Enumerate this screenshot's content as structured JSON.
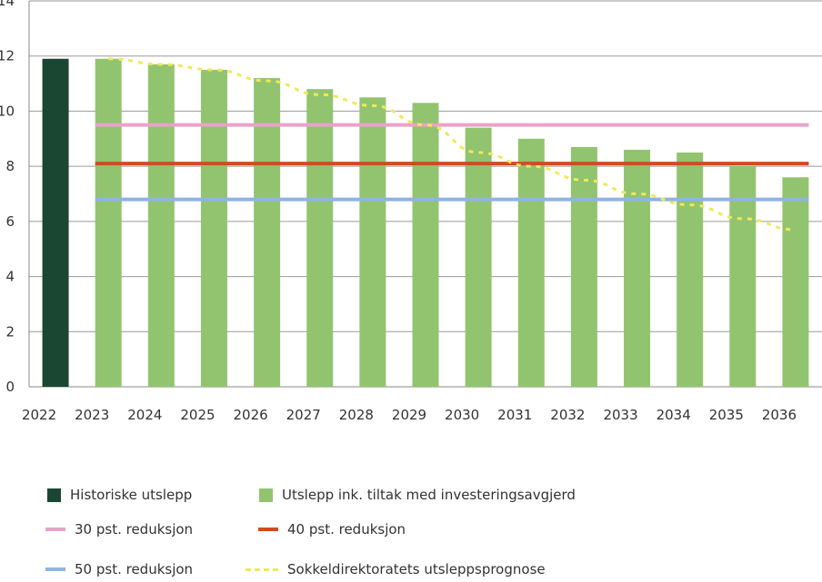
{
  "chart_data": {
    "type": "bar",
    "title": "",
    "xlabel": "",
    "ylabel": "",
    "ylim": [
      0,
      14
    ],
    "yticks": [
      0,
      2,
      4,
      6,
      8,
      10,
      12,
      14
    ],
    "grid": "horizontal",
    "legend_placement": "bottom",
    "categories": [
      "2022",
      "2023",
      "2024",
      "2025",
      "2026",
      "2027",
      "2028",
      "2029",
      "2030",
      "2031",
      "2032",
      "2033",
      "2034",
      "2035",
      "2036"
    ],
    "series": [
      {
        "name": "Historiske utslepp",
        "kind": "bar",
        "color": "#1a4731",
        "values": [
          11.9,
          null,
          null,
          null,
          null,
          null,
          null,
          null,
          null,
          null,
          null,
          null,
          null,
          null,
          null
        ]
      },
      {
        "name": "Utslepp ink. tiltak med investeringsavgjerd",
        "kind": "bar",
        "color": "#92c46f",
        "values": [
          null,
          11.9,
          11.7,
          11.5,
          11.2,
          10.8,
          10.5,
          10.3,
          9.4,
          9.0,
          8.7,
          8.6,
          8.5,
          8.0,
          7.6
        ]
      },
      {
        "name": "30 pst. reduksjon",
        "kind": "line",
        "color": "#e8a3c9",
        "values": [
          null,
          9.5,
          9.5,
          9.5,
          9.5,
          9.5,
          9.5,
          9.5,
          9.5,
          9.5,
          9.5,
          9.5,
          9.5,
          9.5,
          9.5
        ]
      },
      {
        "name": "40 pst. reduksjon",
        "kind": "line",
        "color": "#d04a25",
        "values": [
          null,
          8.1,
          8.1,
          8.1,
          8.1,
          8.1,
          8.1,
          8.1,
          8.1,
          8.1,
          8.1,
          8.1,
          8.1,
          8.1,
          8.1
        ]
      },
      {
        "name": "50 pst. reduksjon",
        "kind": "line",
        "color": "#8fb4df",
        "values": [
          null,
          6.8,
          6.8,
          6.8,
          6.8,
          6.8,
          6.8,
          6.8,
          6.8,
          6.8,
          6.8,
          6.8,
          6.8,
          6.8,
          6.8
        ]
      },
      {
        "name": "Sokkeldirektoratets utsleppsprognose",
        "kind": "dashed-line",
        "color": "#f0e85a",
        "values": [
          null,
          11.9,
          11.7,
          11.5,
          11.1,
          10.6,
          10.2,
          9.5,
          8.5,
          8.0,
          7.5,
          7.0,
          6.6,
          6.1,
          5.7
        ]
      }
    ]
  }
}
